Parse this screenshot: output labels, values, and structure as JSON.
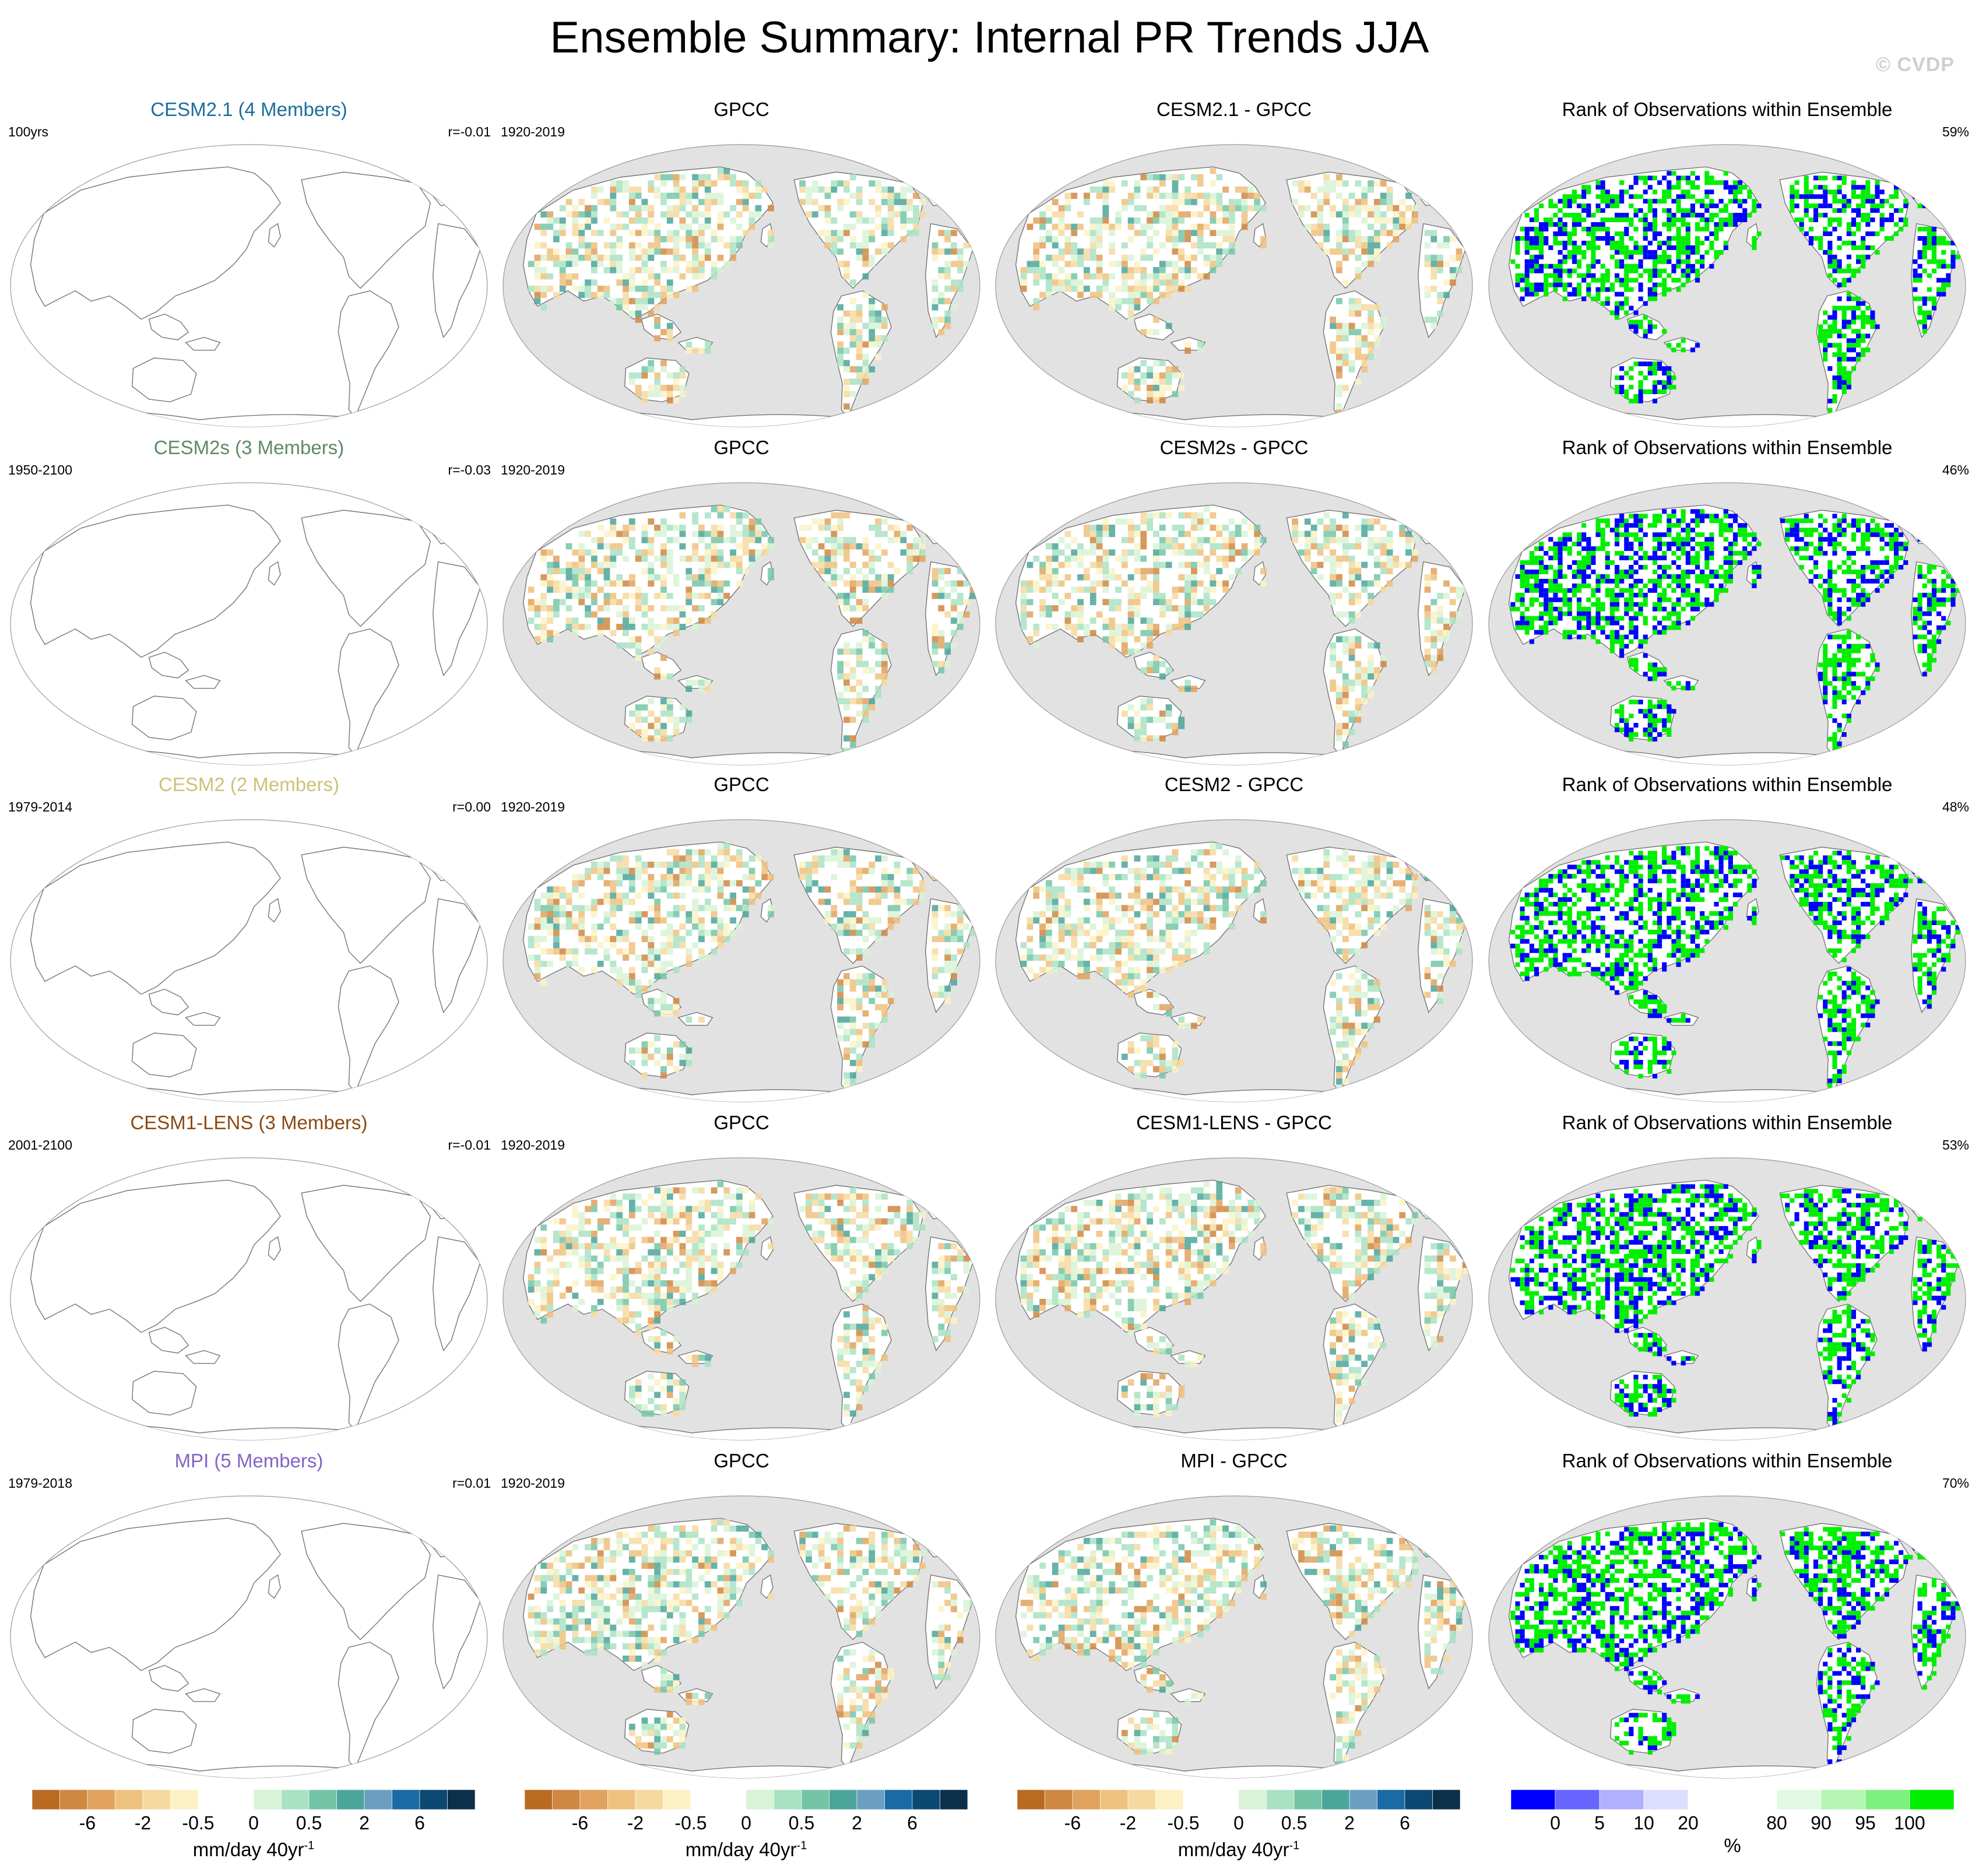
{
  "title": "Ensemble Summary: Internal PR Trends JJA",
  "watermark": "© CVDP",
  "colors": {
    "ocean": "#e2e2e2",
    "land": "#ffffff",
    "coast": "#777777"
  },
  "rows": [
    {
      "model": {
        "title": "CESM2.1 (4 Members)",
        "color": "#1b6f9a",
        "left": "100yrs",
        "right": "r=-0.01"
      },
      "obs": {
        "title": "GPCC",
        "left": "1920-2019",
        "right": ""
      },
      "diff": {
        "title": "CESM2.1 - GPCC",
        "left": "",
        "right": ""
      },
      "rank": {
        "title": "Rank of Observations within Ensemble",
        "left": "",
        "right": "59%"
      }
    },
    {
      "model": {
        "title": "CESM2s (3 Members)",
        "color": "#5f8a66",
        "left": "1950-2100",
        "right": "r=-0.03"
      },
      "obs": {
        "title": "GPCC",
        "left": "1920-2019",
        "right": ""
      },
      "diff": {
        "title": "CESM2s - GPCC",
        "left": "",
        "right": ""
      },
      "rank": {
        "title": "Rank of Observations within Ensemble",
        "left": "",
        "right": "46%"
      }
    },
    {
      "model": {
        "title": "CESM2 (2 Members)",
        "color": "#ccc27a",
        "left": "1979-2014",
        "right": "r=0.00"
      },
      "obs": {
        "title": "GPCC",
        "left": "1920-2019",
        "right": ""
      },
      "diff": {
        "title": "CESM2 - GPCC",
        "left": "",
        "right": ""
      },
      "rank": {
        "title": "Rank of Observations within Ensemble",
        "left": "",
        "right": "48%"
      }
    },
    {
      "model": {
        "title": "CESM1-LENS (3 Members)",
        "color": "#8b4a13",
        "left": "2001-2100",
        "right": "r=-0.01"
      },
      "obs": {
        "title": "GPCC",
        "left": "1920-2019",
        "right": ""
      },
      "diff": {
        "title": "CESM1-LENS - GPCC",
        "left": "",
        "right": ""
      },
      "rank": {
        "title": "Rank of Observations within Ensemble",
        "left": "",
        "right": "53%"
      }
    },
    {
      "model": {
        "title": "MPI (5 Members)",
        "color": "#8563c6",
        "left": "1979-2018",
        "right": "r=0.01"
      },
      "obs": {
        "title": "GPCC",
        "left": "1920-2019",
        "right": ""
      },
      "diff": {
        "title": "MPI - GPCC",
        "left": "",
        "right": ""
      },
      "rank": {
        "title": "Rank of Observations within Ensemble",
        "left": "",
        "right": "70%"
      }
    }
  ],
  "colorbars": {
    "trend": {
      "label": "mm/day 40yr",
      "label_sup": "-1",
      "colors": [
        "#b96b22",
        "#cf8741",
        "#e0a25e",
        "#efc17e",
        "#f6d9a0",
        "#fcf2c5",
        "#ffffff",
        "#ffffff",
        "#d8f3d6",
        "#a9e2c3",
        "#74c5a7",
        "#4ba59a",
        "#6b9fc2",
        "#1a6aa5",
        "#0b4872",
        "#0c2f4a"
      ],
      "ticks": [
        "-6",
        "-2",
        "-0.5",
        "0",
        "0.5",
        "2",
        "6"
      ],
      "tick_boundaries": [
        2,
        4,
        6,
        8,
        10,
        12,
        14
      ]
    },
    "rank": {
      "label": "%",
      "colors": [
        "#0000ff",
        "#6666ff",
        "#b0b0ff",
        "#ddddff",
        "#ffffff",
        "#ffffff",
        "#e0f9e0",
        "#b4f5b4",
        "#7ef07e",
        "#00ee00"
      ],
      "ticks": [
        "0",
        "5",
        "10",
        "20",
        "80",
        "90",
        "95",
        "100"
      ],
      "tick_boundaries": [
        1,
        2,
        3,
        4,
        6,
        7,
        8,
        9
      ]
    }
  }
}
